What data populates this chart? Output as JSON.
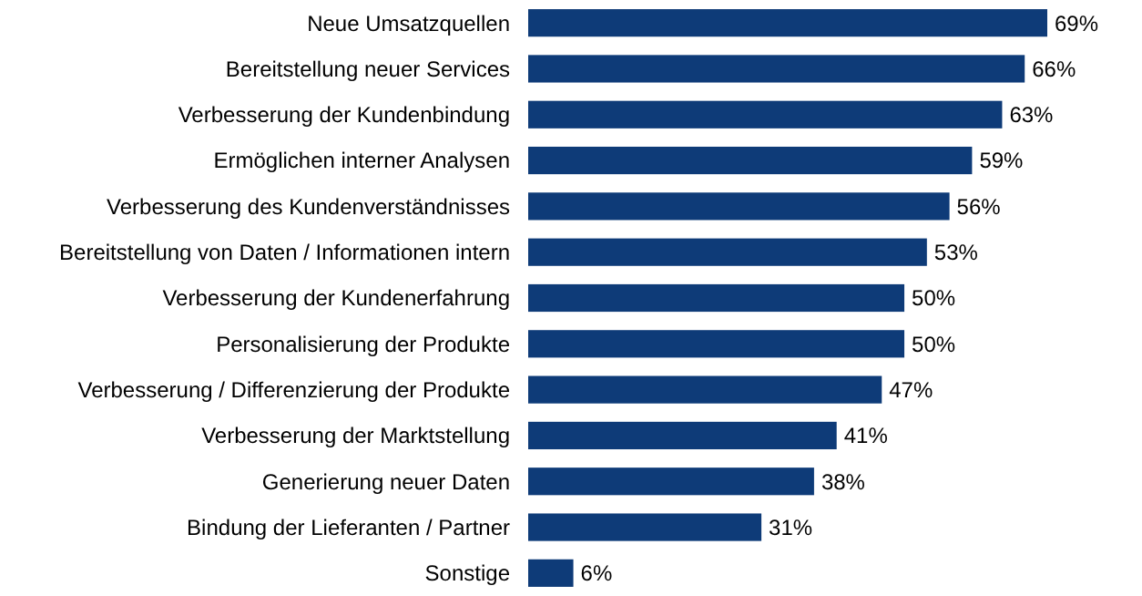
{
  "chart_data": {
    "type": "bar",
    "orientation": "horizontal",
    "categories": [
      "Neue Umsatzquellen",
      "Bereitstellung neuer Services",
      "Verbesserung der Kundenbindung",
      "Ermöglichen interner Analysen",
      "Verbesserung des Kundenverständnisses",
      "Bereitstellung von Daten / Informationen intern",
      "Verbesserung der Kundenerfahrung",
      "Personalisierung der Produkte",
      "Verbesserung / Differenzierung der Produkte",
      "Verbesserung der Marktstellung",
      "Generierung neuer Daten",
      "Bindung der Lieferanten / Partner",
      "Sonstige"
    ],
    "values": [
      69,
      66,
      63,
      59,
      56,
      53,
      50,
      50,
      47,
      41,
      38,
      31,
      6
    ],
    "value_labels": [
      "69%",
      "66%",
      "63%",
      "59%",
      "56%",
      "53%",
      "50%",
      "50%",
      "47%",
      "41%",
      "38%",
      "31%",
      "6%"
    ],
    "color": "#0e3b78"
  }
}
